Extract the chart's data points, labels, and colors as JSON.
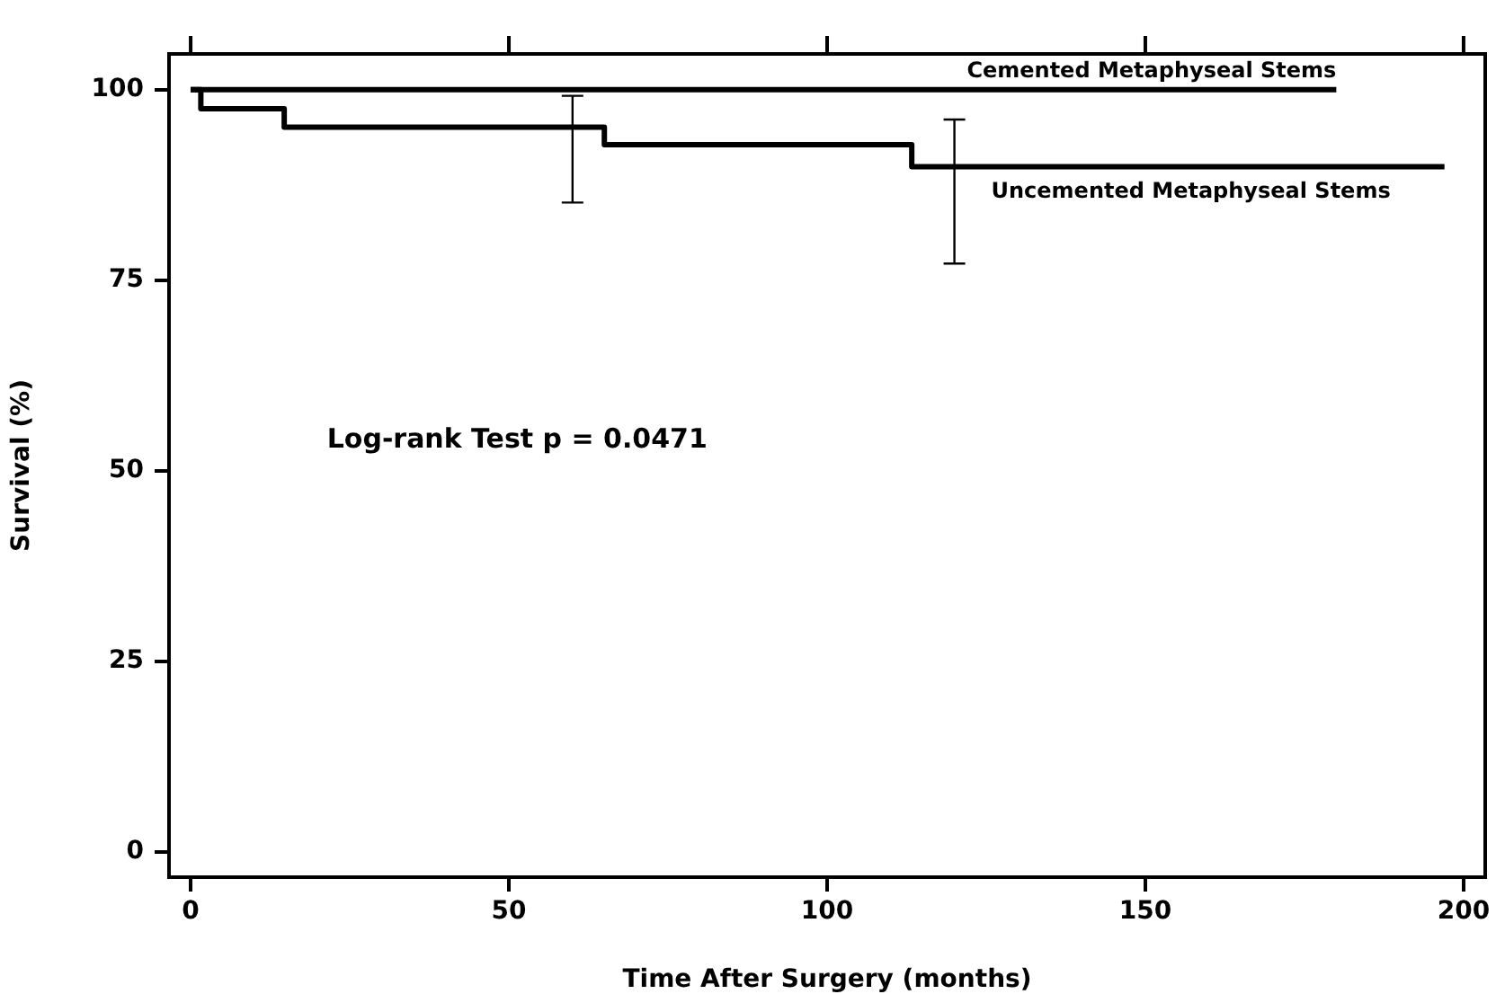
{
  "chart_data": {
    "type": "step",
    "xlabel": "Time After Surgery (months)",
    "ylabel": "Survival (%)",
    "annotations": [
      "Log-rank Test p = 0.0471"
    ],
    "xlim": [
      -3.4,
      203.4
    ],
    "xticks": [
      0,
      50,
      100,
      150,
      200
    ],
    "ylim": [
      -3.3,
      104.7
    ],
    "yticks": [
      0,
      25,
      50,
      75,
      100
    ],
    "grid": false,
    "marker": "none",
    "line_style": "solid",
    "series": [
      {
        "name": "Cemented Metaphyseal Stems",
        "color": "#000000",
        "x": [
          0,
          180
        ],
        "values": [
          100,
          100
        ]
      },
      {
        "name": "Uncemented Metaphyseal Stems",
        "color": "#000000",
        "x": [
          0,
          1.6,
          14.7,
          60,
          65,
          113.3,
          120,
          197
        ],
        "values": [
          100,
          97.5,
          95.1,
          95.1,
          92.8,
          89.9,
          89.9,
          89.9
        ],
        "errors": [
          null,
          null,
          null,
          [
            85.2,
            99.2
          ],
          null,
          null,
          [
            77.2,
            96.1
          ],
          null
        ]
      }
    ]
  }
}
